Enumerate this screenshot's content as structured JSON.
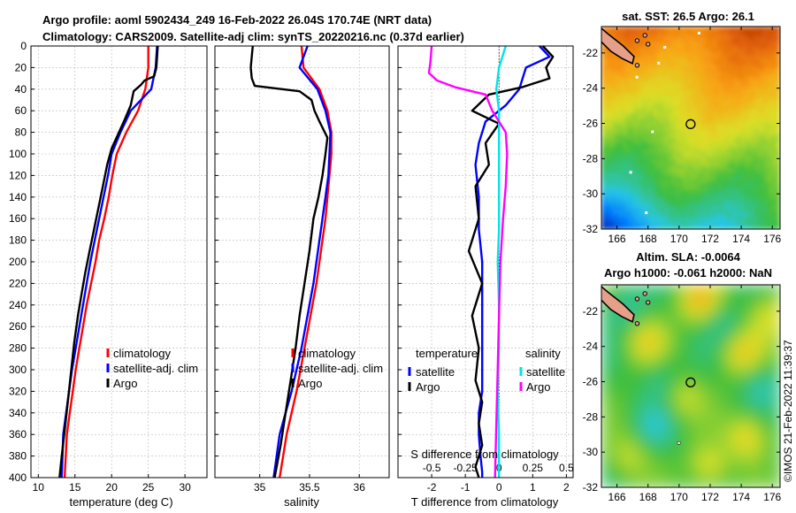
{
  "header": {
    "line1": "Argo profile: aoml 5902434_249 16-Feb-2022 26.04S 170.74E (NRT data)",
    "line2": "Climatology: CARS2009. Satellite-adj clim: synTS_20220216.nc (0.37d earlier)"
  },
  "timestamp": "©IMOS 21-Feb-2022 11:39:37",
  "colors": {
    "climatology": "#ff0000",
    "satellite": "#0000ff",
    "argo": "#000000",
    "sal_satellite": "#00e5e5",
    "sal_argo": "#ff00ff"
  },
  "chart_data": [
    {
      "id": "temperature",
      "type": "line",
      "xlabel": "temperature (deg C)",
      "xlim": [
        9,
        33
      ],
      "xticks": [
        10,
        15,
        20,
        25,
        30
      ],
      "ylim": [
        0,
        400
      ],
      "yticks": [
        0,
        20,
        40,
        60,
        80,
        100,
        120,
        140,
        160,
        180,
        200,
        220,
        240,
        260,
        280,
        300,
        320,
        340,
        360,
        380,
        400
      ],
      "legend": [
        "climatology",
        "satellite-adj. clim",
        "Argo"
      ],
      "series": [
        {
          "name": "climatology",
          "color": "#ff0000",
          "x": [
            25.0,
            25.0,
            24.6,
            23.6,
            22.0,
            20.7,
            20.1,
            19.6,
            19.0,
            18.3,
            17.8,
            17.2,
            16.6,
            16.1,
            15.6,
            15.1,
            14.7,
            14.3,
            13.9,
            13.6
          ],
          "y": [
            0,
            20,
            40,
            60,
            80,
            100,
            120,
            140,
            160,
            180,
            200,
            220,
            240,
            260,
            280,
            300,
            320,
            340,
            360,
            400
          ]
        },
        {
          "name": "satellite-adj. clim",
          "color": "#0000ff",
          "x": [
            26.2,
            26.0,
            25.4,
            22.6,
            21.2,
            20.0,
            19.5,
            18.9,
            18.3,
            17.7,
            17.1,
            16.6,
            16.1,
            15.6,
            15.1,
            14.6,
            14.2,
            13.8,
            13.4,
            13.2
          ],
          "y": [
            0,
            20,
            40,
            60,
            80,
            100,
            120,
            140,
            160,
            180,
            200,
            220,
            240,
            260,
            280,
            300,
            320,
            340,
            360,
            400
          ]
        },
        {
          "name": "Argo",
          "color": "#000000",
          "x": [
            26.3,
            26.2,
            26.1,
            25.8,
            24.5,
            24.0,
            23.0,
            22.6,
            21.8,
            21.0,
            20.0,
            19.4,
            18.8,
            18.2,
            17.6,
            17.0,
            16.4,
            15.9,
            15.4,
            14.9,
            14.5,
            14.1,
            13.7,
            13.2,
            12.9
          ],
          "y": [
            0,
            10,
            20,
            28,
            32,
            36,
            42,
            55,
            68,
            80,
            95,
            110,
            130,
            150,
            170,
            190,
            210,
            230,
            250,
            275,
            300,
            325,
            350,
            380,
            400
          ]
        }
      ]
    },
    {
      "id": "salinity",
      "type": "line",
      "xlabel": "salinity",
      "xlim": [
        34.55,
        36.3
      ],
      "xticks": [
        35,
        35.5,
        36
      ],
      "xtick_labels": [
        "35",
        "35.5",
        "36"
      ],
      "ylim": [
        0,
        400
      ],
      "legend": [
        "climatology",
        "satellite-adj. clim",
        "Argo"
      ],
      "series": [
        {
          "name": "climatology",
          "color": "#ff0000",
          "x": [
            35.42,
            35.44,
            35.6,
            35.68,
            35.72,
            35.72,
            35.7,
            35.68,
            35.66,
            35.63,
            35.6,
            35.57,
            35.53,
            35.49,
            35.45,
            35.41,
            35.37,
            35.32,
            35.27,
            35.2
          ],
          "y": [
            0,
            20,
            40,
            60,
            80,
            100,
            120,
            140,
            160,
            180,
            200,
            220,
            240,
            260,
            280,
            300,
            320,
            340,
            360,
            400
          ]
        },
        {
          "name": "satellite-adj. clim",
          "color": "#0000ff",
          "x": [
            35.48,
            35.4,
            35.58,
            35.66,
            35.71,
            35.7,
            35.69,
            35.66,
            35.63,
            35.6,
            35.57,
            35.54,
            35.5,
            35.46,
            35.42,
            35.37,
            35.32,
            35.26,
            35.2,
            35.14
          ],
          "y": [
            0,
            20,
            40,
            60,
            80,
            100,
            120,
            140,
            160,
            180,
            200,
            220,
            240,
            260,
            280,
            300,
            320,
            340,
            360,
            400
          ]
        },
        {
          "name": "Argo",
          "color": "#000000",
          "x": [
            34.93,
            34.91,
            34.92,
            34.95,
            35.4,
            35.52,
            35.55,
            35.6,
            35.68,
            35.66,
            35.63,
            35.59,
            35.54,
            35.5,
            35.45,
            35.4,
            35.36,
            35.31,
            35.26,
            35.21,
            35.15
          ],
          "y": [
            0,
            20,
            30,
            37,
            42,
            50,
            60,
            70,
            85,
            100,
            120,
            140,
            160,
            190,
            220,
            250,
            280,
            310,
            340,
            370,
            400
          ]
        }
      ]
    },
    {
      "id": "difference",
      "type": "line",
      "xlabel": "T difference from climatology",
      "xlim": [
        -3,
        2.2
      ],
      "xticks": [
        -2,
        -1,
        0,
        1,
        2
      ],
      "xtick_labels": [
        "-2",
        "-1",
        "0",
        "1",
        "2"
      ],
      "top_axis_label": "S difference from climatology",
      "top_ticks": [
        -0.5,
        -0.25,
        0,
        0.25,
        0.5
      ],
      "top_tick_labels": [
        "-0.5",
        "-0.25",
        "0",
        "0.25",
        "0.5"
      ],
      "ylim": [
        0,
        400
      ],
      "legend_t_title": "temperature",
      "legend_s_title": "salinity",
      "legend_t": [
        "satellite",
        "Argo"
      ],
      "legend_s": [
        "satellite",
        "Argo"
      ],
      "series": [
        {
          "name": "T satellite",
          "color": "#0000ff",
          "x": [
            1.2,
            1.5,
            0.8,
            0.6,
            0.2,
            -0.4,
            -0.6,
            -0.7,
            -0.6,
            -0.6,
            -0.5,
            -0.5,
            -0.5,
            -0.5,
            -0.5,
            -0.6,
            -0.6,
            -0.55,
            -0.5,
            -0.5
          ],
          "y": [
            0,
            10,
            20,
            40,
            55,
            70,
            90,
            110,
            140,
            170,
            200,
            230,
            260,
            290,
            320,
            340,
            360,
            380,
            395,
            400
          ]
        },
        {
          "name": "T Argo",
          "color": "#000000",
          "x": [
            1.3,
            1.6,
            1.4,
            1.5,
            0.7,
            -0.3,
            -0.8,
            0.0,
            -0.4,
            -0.3,
            -0.7,
            -0.6,
            -0.9,
            -0.5,
            -0.8,
            -0.6,
            -0.7,
            -0.5,
            -0.6,
            -0.5,
            -0.7,
            -0.6
          ],
          "y": [
            0,
            10,
            20,
            30,
            38,
            45,
            60,
            72,
            90,
            110,
            130,
            160,
            190,
            220,
            250,
            280,
            310,
            330,
            350,
            370,
            390,
            400
          ]
        },
        {
          "name": "S satellite",
          "color": "#00e5e5",
          "x": [
            0.05,
            0.0,
            -0.02,
            0.0,
            0.0,
            0.0,
            0.0,
            0.0,
            -0.01,
            0.0,
            0.0,
            -0.01,
            0.0,
            0.0
          ],
          "y": [
            0,
            20,
            40,
            60,
            80,
            110,
            140,
            170,
            200,
            240,
            280,
            320,
            360,
            400
          ]
        },
        {
          "name": "S Argo",
          "color": "#ff00ff",
          "x": [
            -0.5,
            -0.51,
            -0.52,
            -0.46,
            -0.33,
            -0.1,
            -0.05,
            0.05,
            0.06,
            0.05,
            0.03,
            0.01,
            0.0,
            -0.01,
            -0.02,
            -0.03
          ],
          "y": [
            0,
            15,
            25,
            32,
            38,
            45,
            60,
            80,
            100,
            130,
            160,
            200,
            250,
            300,
            350,
            400
          ]
        }
      ]
    },
    {
      "id": "sst_map",
      "type": "heatmap",
      "title": "sat. SST: 26.5 Argo: 26.1",
      "xlim": [
        165,
        176.5
      ],
      "ylim": [
        -32,
        -20.5
      ],
      "xticks": [
        166,
        168,
        170,
        172,
        174,
        176
      ],
      "yticks": [
        -22,
        -24,
        -26,
        -28,
        -30,
        -32
      ],
      "argo_lon": 170.74,
      "argo_lat": -26.04
    },
    {
      "id": "sla_map",
      "type": "heatmap",
      "title_line1": "Altim. SLA: -0.0064",
      "title_line2": "Argo h1000: -0.061 h2000: NaN",
      "xlim": [
        165,
        176.5
      ],
      "ylim": [
        -32,
        -20.5
      ],
      "xticks": [
        166,
        168,
        170,
        172,
        174,
        176
      ],
      "yticks": [
        -22,
        -24,
        -26,
        -28,
        -30,
        -32
      ],
      "argo_lon": 170.74,
      "argo_lat": -26.04
    }
  ]
}
